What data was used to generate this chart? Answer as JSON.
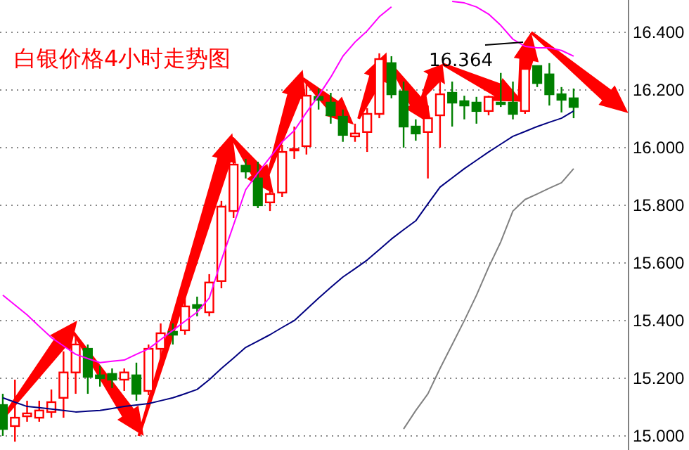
{
  "chart_data": {
    "type": "candlestick",
    "title": "白银价格4小时走势图",
    "categories": [
      null,
      null,
      null,
      null,
      null,
      null,
      null,
      null,
      null,
      null,
      null,
      null,
      null,
      null,
      null,
      null,
      null,
      null,
      null,
      null,
      null,
      null,
      null,
      null,
      null,
      null,
      null,
      null,
      null,
      null,
      null,
      null,
      null,
      null,
      null,
      null,
      null,
      null,
      null,
      null,
      null,
      null,
      null,
      null,
      null,
      null,
      null,
      null
    ],
    "ohlc": [
      [
        15.107,
        15.146,
        15.0,
        15.024
      ],
      [
        15.034,
        15.195,
        14.98,
        15.063
      ],
      [
        15.068,
        15.122,
        15.049,
        15.078
      ],
      [
        15.063,
        15.122,
        15.049,
        15.088
      ],
      [
        15.083,
        15.161,
        15.063,
        15.117
      ],
      [
        15.132,
        15.293,
        15.063,
        15.22
      ],
      [
        15.22,
        15.351,
        15.146,
        15.317
      ],
      [
        15.302,
        15.317,
        15.146,
        15.205
      ],
      [
        15.21,
        15.244,
        15.171,
        15.2
      ],
      [
        15.215,
        15.234,
        15.166,
        15.195
      ],
      [
        15.195,
        15.234,
        15.156,
        15.22
      ],
      [
        15.21,
        15.254,
        15.122,
        15.146
      ],
      [
        15.156,
        15.317,
        15.141,
        15.302
      ],
      [
        15.302,
        15.39,
        15.268,
        15.356
      ],
      [
        15.361,
        15.39,
        15.317,
        15.351
      ],
      [
        15.366,
        15.483,
        15.351,
        15.449
      ],
      [
        15.454,
        15.483,
        15.415,
        15.444
      ],
      [
        15.429,
        15.561,
        15.415,
        15.532
      ],
      [
        15.537,
        15.815,
        15.512,
        15.795
      ],
      [
        15.78,
        15.961,
        15.756,
        15.941
      ],
      [
        15.937,
        15.961,
        15.893,
        15.917
      ],
      [
        15.893,
        15.951,
        15.79,
        15.8
      ],
      [
        15.81,
        15.863,
        15.78,
        15.839
      ],
      [
        15.844,
        16.01,
        15.829,
        15.985
      ],
      [
        15.99,
        16.073,
        15.961,
        15.995
      ],
      [
        16.005,
        16.22,
        15.976,
        16.18
      ],
      [
        16.176,
        16.205,
        16.132,
        16.166
      ],
      [
        16.156,
        16.19,
        16.083,
        16.112
      ],
      [
        16.107,
        16.132,
        16.02,
        16.044
      ],
      [
        16.039,
        16.083,
        16.02,
        16.049
      ],
      [
        16.054,
        16.137,
        15.985,
        16.117
      ],
      [
        16.117,
        16.327,
        16.102,
        16.307
      ],
      [
        16.293,
        16.317,
        16.171,
        16.185
      ],
      [
        16.195,
        16.229,
        16.0,
        16.073
      ],
      [
        16.073,
        16.098,
        16.024,
        16.049
      ],
      [
        16.054,
        16.146,
        15.893,
        16.102
      ],
      [
        16.112,
        16.229,
        16.0,
        16.185
      ],
      [
        16.19,
        16.229,
        16.073,
        16.156
      ],
      [
        16.161,
        16.18,
        16.098,
        16.146
      ],
      [
        16.156,
        16.176,
        16.083,
        16.127
      ],
      [
        16.127,
        16.18,
        16.112,
        16.176
      ],
      [
        16.156,
        16.259,
        16.141,
        16.151
      ],
      [
        16.156,
        16.229,
        16.098,
        16.117
      ],
      [
        16.127,
        16.364,
        16.117,
        16.273
      ],
      [
        16.283,
        16.283,
        16.21,
        16.224
      ],
      [
        16.254,
        16.293,
        16.146,
        16.185
      ],
      [
        16.185,
        16.21,
        16.122,
        16.166
      ],
      [
        16.171,
        16.205,
        16.102,
        16.141
      ]
    ],
    "series": [
      {
        "type": "line",
        "color": "#ff00ff",
        "values": [
          15.488,
          15.454,
          15.42,
          15.38,
          15.341,
          15.312,
          15.283,
          15.268,
          15.254,
          15.259,
          15.263,
          15.283,
          15.302,
          15.334,
          15.366,
          15.398,
          15.429,
          15.478,
          15.61,
          15.732,
          15.854,
          15.912,
          15.966,
          16.02,
          16.059,
          16.122,
          16.18,
          16.244,
          16.317,
          16.366,
          16.405,
          16.454,
          16.488,
          null,
          null,
          null,
          null,
          16.507,
          16.502,
          16.488,
          16.463,
          16.424,
          16.376,
          16.351,
          16.346,
          16.346,
          16.337,
          16.317
        ]
      },
      {
        "type": "line",
        "color": "#000080",
        "values": [
          15.132,
          15.117,
          15.102,
          15.098,
          15.093,
          15.088,
          15.083,
          15.086,
          15.088,
          15.095,
          15.102,
          15.107,
          15.112,
          15.122,
          15.132,
          15.146,
          15.161,
          15.195,
          15.234,
          15.27,
          15.307,
          15.329,
          15.351,
          15.376,
          15.4,
          15.439,
          15.478,
          15.515,
          15.551,
          15.58,
          15.61,
          15.646,
          15.683,
          15.715,
          15.746,
          15.805,
          15.863,
          15.895,
          15.927,
          15.956,
          15.985,
          16.012,
          16.039,
          16.056,
          16.073,
          16.088,
          16.102,
          16.127
        ]
      },
      {
        "type": "line",
        "color": "#808080",
        "values": [
          null,
          null,
          null,
          null,
          null,
          null,
          null,
          null,
          null,
          null,
          null,
          null,
          null,
          null,
          null,
          null,
          null,
          null,
          null,
          null,
          null,
          null,
          null,
          null,
          null,
          null,
          null,
          null,
          null,
          null,
          null,
          null,
          null,
          15.024,
          15.088,
          15.146,
          15.234,
          15.317,
          15.4,
          15.488,
          15.585,
          15.673,
          15.78,
          15.82,
          15.839,
          15.859,
          15.878,
          15.927
        ]
      }
    ],
    "annotations": [
      "16.364"
    ],
    "ylim": [
      14.951,
      16.512
    ],
    "yticks": [
      {
        "value": 15,
        "label": "15.000"
      },
      {
        "value": 15.2,
        "label": "15.200"
      },
      {
        "value": 15.4,
        "label": "15.400"
      },
      {
        "value": 15.6,
        "label": "15.600"
      },
      {
        "value": 15.8,
        "label": "15.800"
      },
      {
        "value": 16,
        "label": "16.000"
      },
      {
        "value": 16.2,
        "label": "16.200"
      },
      {
        "value": 16.4,
        "label": "16.400"
      }
    ],
    "grid": "y",
    "tick_labels": "y"
  }
}
